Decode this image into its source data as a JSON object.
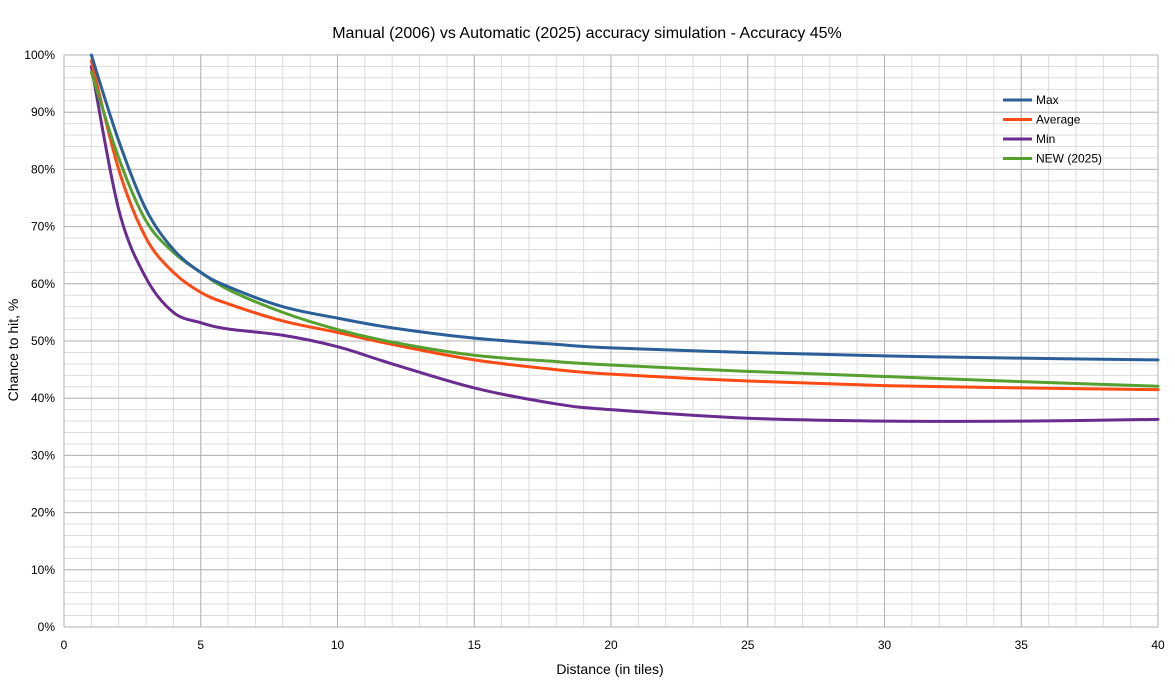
{
  "chart_data": {
    "type": "line",
    "title": "Manual (2006) vs Automatic (2025) accuracy simulation - Accuracy 45%",
    "xlabel": "Distance (in tiles)",
    "ylabel": "Chance to hit, %",
    "xlim": [
      0,
      40
    ],
    "ylim": [
      0,
      100
    ],
    "x_ticks": [
      0,
      5,
      10,
      15,
      20,
      25,
      30,
      35,
      40
    ],
    "y_ticks": [
      0,
      10,
      20,
      30,
      40,
      50,
      60,
      70,
      80,
      90,
      100
    ],
    "y_tick_labels": [
      "0%",
      "10%",
      "20%",
      "30%",
      "40%",
      "50%",
      "60%",
      "70%",
      "80%",
      "90%",
      "100%"
    ],
    "grid": true,
    "legend_position": "top-right",
    "series": [
      {
        "name": "Max",
        "color": "#2b5f97",
        "x": [
          1,
          2,
          3,
          4,
          5,
          6,
          8,
          10,
          12,
          15,
          18,
          20,
          25,
          30,
          35,
          40
        ],
        "y": [
          100,
          85,
          73,
          66,
          62,
          59.5,
          56,
          54,
          52.3,
          50.5,
          49.4,
          48.8,
          48,
          47.4,
          47,
          46.7
        ]
      },
      {
        "name": "Average",
        "color": "#fe4a14",
        "x": [
          1,
          2,
          3,
          4,
          5,
          6,
          8,
          10,
          12,
          15,
          18,
          20,
          25,
          30,
          35,
          40
        ],
        "y": [
          99,
          80,
          68,
          62,
          58.5,
          56.5,
          53.5,
          51.5,
          49.4,
          46.7,
          45,
          44.2,
          43,
          42.2,
          41.8,
          41.5
        ]
      },
      {
        "name": "Min",
        "color": "#6b2c8f",
        "x": [
          1,
          2,
          3,
          4,
          5,
          6,
          8,
          10,
          12,
          15,
          18,
          20,
          25,
          30,
          35,
          40
        ],
        "y": [
          98,
          73,
          61,
          55,
          53.2,
          52.1,
          51,
          49,
          46,
          41.8,
          39,
          38,
          36.5,
          36,
          36,
          36.3
        ]
      },
      {
        "name": "NEW (2025)",
        "color": "#56a030",
        "x": [
          1,
          2,
          3,
          4,
          5,
          6,
          8,
          10,
          12,
          15,
          18,
          20,
          25,
          30,
          35,
          40
        ],
        "y": [
          97,
          82,
          71,
          65.5,
          62,
          59,
          55,
          52,
          49.8,
          47.5,
          46.4,
          45.8,
          44.7,
          43.8,
          42.9,
          42.1
        ]
      }
    ]
  }
}
